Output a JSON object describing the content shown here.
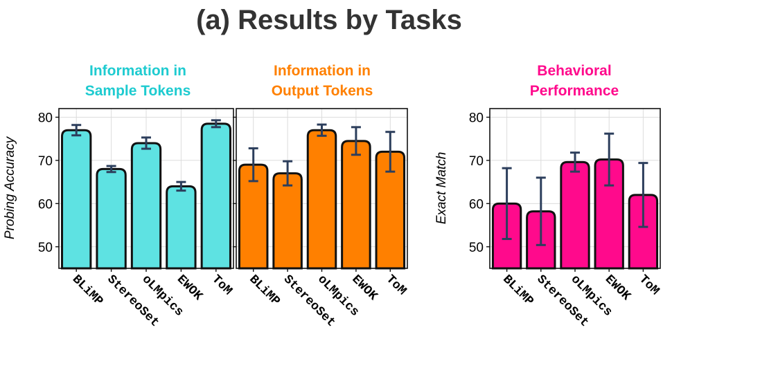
{
  "title": "(a) Results by Tasks",
  "chart_data": [
    {
      "type": "bar",
      "title": "Information in\nSample Tokens",
      "title_color": "#1ecbd0",
      "bar_color": "#5ee2e2",
      "ylabel": "Probing Accuracy",
      "xlabel": "",
      "ylim": [
        45,
        82
      ],
      "yticks": [
        50,
        60,
        70,
        80
      ],
      "grid": true,
      "categories": [
        "BLiMP",
        "StereoSet",
        "oLMpics",
        "EWOK",
        "ToM"
      ],
      "values": [
        77.0,
        68.0,
        74.0,
        64.0,
        78.5
      ],
      "errors": [
        1.2,
        0.7,
        1.3,
        1.0,
        0.8
      ]
    },
    {
      "type": "bar",
      "title": "Information in\nOutput Tokens",
      "title_color": "#ff8000",
      "bar_color": "#ff8000",
      "ylabel": "",
      "xlabel": "",
      "ylim": [
        45,
        82
      ],
      "yticks": [
        50,
        60,
        70,
        80
      ],
      "grid": true,
      "categories": [
        "BLiMP",
        "StereoSet",
        "oLMpics",
        "EWOK",
        "ToM"
      ],
      "values": [
        69.0,
        67.0,
        77.0,
        74.5,
        72.0
      ],
      "errors": [
        3.8,
        2.8,
        1.3,
        3.2,
        4.6
      ]
    },
    {
      "type": "bar",
      "title": "Behavioral\nPerformance",
      "title_color": "#ff0a8c",
      "bar_color": "#ff0a8c",
      "ylabel": "Exact Match",
      "xlabel": "",
      "ylim": [
        45,
        82
      ],
      "yticks": [
        50,
        60,
        70,
        80
      ],
      "grid": true,
      "categories": [
        "BLiMP",
        "StereoSet",
        "oLMpics",
        "EWOK",
        "ToM"
      ],
      "values": [
        60.0,
        58.2,
        69.6,
        70.2,
        62.0
      ],
      "errors": [
        8.2,
        7.8,
        2.2,
        6.0,
        7.4
      ]
    }
  ]
}
